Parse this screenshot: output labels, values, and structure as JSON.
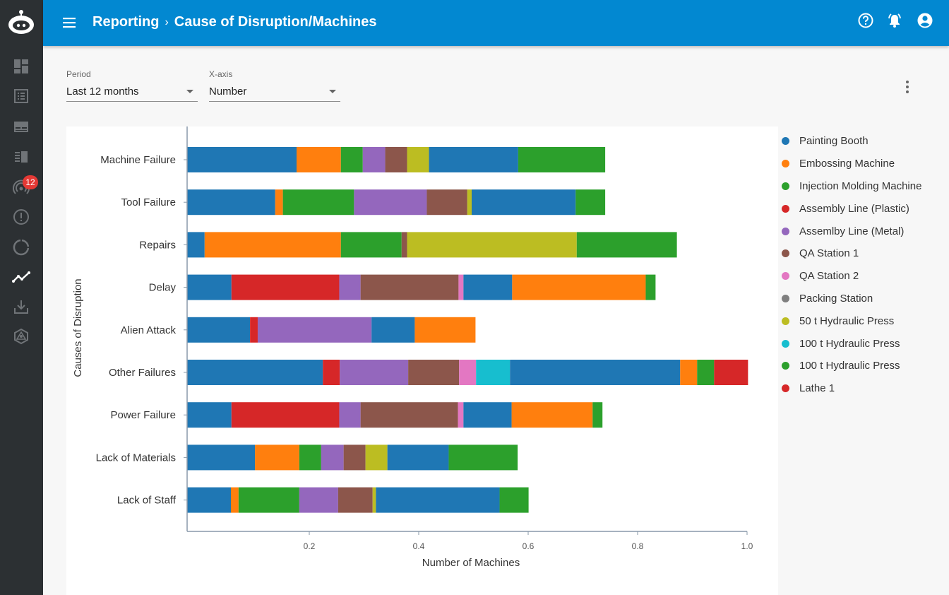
{
  "header": {
    "breadcrumb": [
      "Reporting",
      "Cause of Disruption/Machines"
    ],
    "separator": "›"
  },
  "sidebar": {
    "notification_badge": "12",
    "items": [
      "dashboard",
      "list",
      "tickets",
      "reports-list",
      "signal",
      "alerts",
      "progress",
      "analytics",
      "download",
      "integrations"
    ]
  },
  "filters": {
    "period": {
      "label": "Period",
      "value": "Last 12 months"
    },
    "xaxis": {
      "label": "X-axis",
      "value": "Number"
    }
  },
  "legend": [
    {
      "name": "Painting Booth",
      "color": "#1f77b4"
    },
    {
      "name": "Embossing Machine",
      "color": "#ff7f0e"
    },
    {
      "name": "Injection Molding Machine",
      "color": "#2ca02c"
    },
    {
      "name": "Assembly Line (Plastic)",
      "color": "#d62728"
    },
    {
      "name": "Assemlby Line (Metal)",
      "color": "#9467bd"
    },
    {
      "name": "QA Station 1",
      "color": "#8c564b"
    },
    {
      "name": "QA Station 2",
      "color": "#e377c2"
    },
    {
      "name": "Packing Station",
      "color": "#7f7f7f"
    },
    {
      "name": "50 t Hydraulic Press",
      "color": "#bcbd22"
    },
    {
      "name": "100 t Hydraulic Press",
      "color": "#17becf"
    },
    {
      "name": "100 t Hydraulic Press",
      "color": "#2ca02c"
    },
    {
      "name": "Lathe 1",
      "color": "#d62728"
    }
  ],
  "chart_data": {
    "type": "bar",
    "orientation": "horizontal",
    "stacked": true,
    "xlabel": "Number of Machines",
    "ylabel": "Causes of Disruption",
    "xticks": [
      0.2,
      0.4,
      0.6,
      0.8,
      1.0
    ],
    "xtick_labels": [
      "0.2",
      "0.4",
      "0.6",
      "0.8",
      "1.0"
    ],
    "xlim": [
      0,
      1.0
    ],
    "grid": false,
    "legend_position": "right",
    "categories": [
      "Machine Failure",
      "Tool Failure",
      "Repairs",
      "Delay",
      "Alien Attack",
      "Other Failures",
      "Power Failure",
      "Lack of Materials",
      "Lack of Staff"
    ],
    "bars": [
      {
        "category": "Machine Failure",
        "segments": [
          {
            "color": "#1f77b4",
            "value": 0.2
          },
          {
            "color": "#ff7f0e",
            "value": 0.081
          },
          {
            "color": "#2ca02c",
            "value": 0.04
          },
          {
            "color": "#9467bd",
            "value": 0.041
          },
          {
            "color": "#8c564b",
            "value": 0.04
          },
          {
            "color": "#bcbd22",
            "value": 0.04
          },
          {
            "color": "#1f77b4",
            "value": 0.163
          },
          {
            "color": "#2ca02c",
            "value": 0.159
          }
        ]
      },
      {
        "category": "Tool Failure",
        "segments": [
          {
            "color": "#1f77b4",
            "value": 0.161
          },
          {
            "color": "#ff7f0e",
            "value": 0.014
          },
          {
            "color": "#2ca02c",
            "value": 0.13
          },
          {
            "color": "#9467bd",
            "value": 0.133
          },
          {
            "color": "#8c564b",
            "value": 0.074
          },
          {
            "color": "#bcbd22",
            "value": 0.008
          },
          {
            "color": "#1f77b4",
            "value": 0.19
          },
          {
            "color": "#2ca02c",
            "value": 0.054
          }
        ]
      },
      {
        "category": "Repairs",
        "segments": [
          {
            "color": "#1f77b4",
            "value": 0.032
          },
          {
            "color": "#ff7f0e",
            "value": 0.249
          },
          {
            "color": "#2ca02c",
            "value": 0.111
          },
          {
            "color": "#8c564b",
            "value": 0.01
          },
          {
            "color": "#bcbd22",
            "value": 0.31
          },
          {
            "color": "#2ca02c",
            "value": 0.183
          }
        ]
      },
      {
        "category": "Delay",
        "segments": [
          {
            "color": "#1f77b4",
            "value": 0.081
          },
          {
            "color": "#d62728",
            "value": 0.197
          },
          {
            "color": "#9467bd",
            "value": 0.039
          },
          {
            "color": "#8c564b",
            "value": 0.179
          },
          {
            "color": "#e377c2",
            "value": 0.009
          },
          {
            "color": "#1f77b4",
            "value": 0.089
          },
          {
            "color": "#ff7f0e",
            "value": 0.244
          },
          {
            "color": "#2ca02c",
            "value": 0.018
          }
        ]
      },
      {
        "category": "Alien Attack",
        "segments": [
          {
            "color": "#1f77b4",
            "value": 0.115
          },
          {
            "color": "#d62728",
            "value": 0.014
          },
          {
            "color": "#9467bd",
            "value": 0.208
          },
          {
            "color": "#1f77b4",
            "value": 0.079
          },
          {
            "color": "#ff7f0e",
            "value": 0.111
          }
        ]
      },
      {
        "category": "Other Failures",
        "segments": [
          {
            "color": "#1f77b4",
            "value": 0.248
          },
          {
            "color": "#d62728",
            "value": 0.031
          },
          {
            "color": "#9467bd",
            "value": 0.125
          },
          {
            "color": "#8c564b",
            "value": 0.093
          },
          {
            "color": "#e377c2",
            "value": 0.031
          },
          {
            "color": "#17becf",
            "value": 0.062
          },
          {
            "color": "#1f77b4",
            "value": 0.311
          },
          {
            "color": "#ff7f0e",
            "value": 0.031
          },
          {
            "color": "#2ca02c",
            "value": 0.031
          },
          {
            "color": "#d62728",
            "value": 0.062
          }
        ]
      },
      {
        "category": "Power Failure",
        "segments": [
          {
            "color": "#1f77b4",
            "value": 0.081
          },
          {
            "color": "#d62728",
            "value": 0.197
          },
          {
            "color": "#9467bd",
            "value": 0.039
          },
          {
            "color": "#8c564b",
            "value": 0.178
          },
          {
            "color": "#e377c2",
            "value": 0.01
          },
          {
            "color": "#1f77b4",
            "value": 0.088
          },
          {
            "color": "#ff7f0e",
            "value": 0.148
          },
          {
            "color": "#2ca02c",
            "value": 0.018
          }
        ]
      },
      {
        "category": "Lack of Materials",
        "segments": [
          {
            "color": "#1f77b4",
            "value": 0.124
          },
          {
            "color": "#ff7f0e",
            "value": 0.081
          },
          {
            "color": "#2ca02c",
            "value": 0.04
          },
          {
            "color": "#9467bd",
            "value": 0.041
          },
          {
            "color": "#8c564b",
            "value": 0.04
          },
          {
            "color": "#bcbd22",
            "value": 0.04
          },
          {
            "color": "#1f77b4",
            "value": 0.112
          },
          {
            "color": "#2ca02c",
            "value": 0.126
          }
        ]
      },
      {
        "category": "Lack of Staff",
        "segments": [
          {
            "color": "#1f77b4",
            "value": 0.08
          },
          {
            "color": "#ff7f0e",
            "value": 0.014
          },
          {
            "color": "#2ca02c",
            "value": 0.111
          },
          {
            "color": "#9467bd",
            "value": 0.071
          },
          {
            "color": "#8c564b",
            "value": 0.063
          },
          {
            "color": "#bcbd22",
            "value": 0.006
          },
          {
            "color": "#1f77b4",
            "value": 0.226
          },
          {
            "color": "#2ca02c",
            "value": 0.053
          }
        ]
      }
    ]
  }
}
